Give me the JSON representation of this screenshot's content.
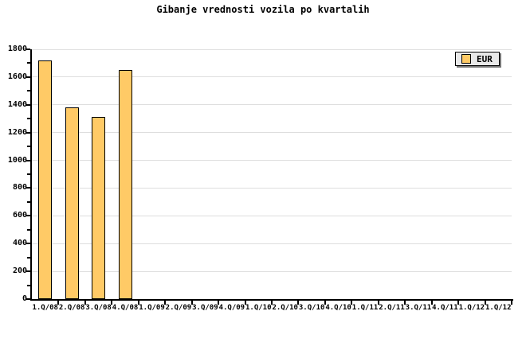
{
  "chart_data": {
    "type": "bar",
    "title": "Gibanje vrednosti vozila po kvartalih",
    "categories": [
      "1.Q/08",
      "2.Q/08",
      "3.Q/08",
      "4.Q/08",
      "1.Q/09",
      "2.Q/09",
      "3.Q/09",
      "4.Q/09",
      "1.Q/10",
      "2.Q/10",
      "3.Q/10",
      "4.Q/10",
      "1.Q/11",
      "2.Q/11",
      "3.Q/11",
      "4.Q/11",
      "1.Q/12",
      "1.Q/12"
    ],
    "series": [
      {
        "name": "EUR",
        "values": [
          1720,
          1380,
          1310,
          1650,
          null,
          null,
          null,
          null,
          null,
          null,
          null,
          null,
          null,
          null,
          null,
          null,
          null,
          null
        ]
      }
    ],
    "xlabel": "",
    "ylabel": "",
    "ylim": [
      0,
      1800
    ],
    "ytick_major": 200,
    "ytick_minor": 100,
    "yticklabels": [
      "0",
      "200",
      "400",
      "600",
      "800",
      "1000",
      "1200",
      "1400",
      "1600",
      "1800"
    ],
    "grid": "horizontal-major",
    "legend": {
      "label": "EUR",
      "position": "top-right"
    },
    "colors": {
      "bar_fill": "#ffca66",
      "bar_border": "#000000",
      "grid": "#dedede",
      "axis": "#000000",
      "text": "#000000",
      "legend_bg": "#e9e9e9",
      "legend_shadow": "#757575",
      "background": "#ffffff"
    }
  }
}
